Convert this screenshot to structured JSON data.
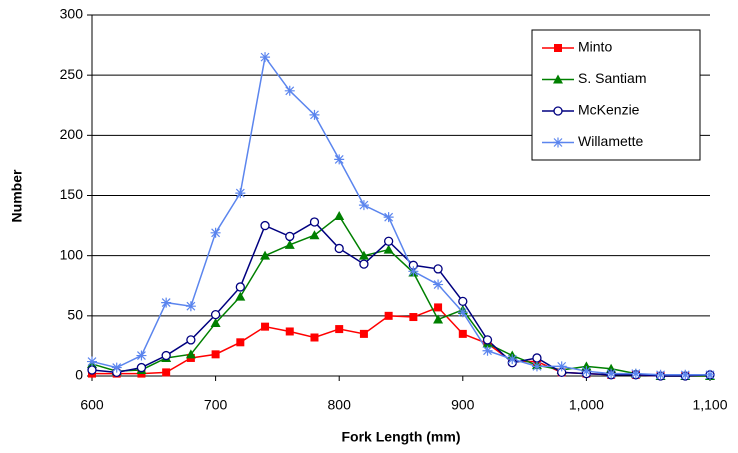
{
  "chart_data": {
    "type": "line",
    "x_label": "Fork Length (mm)",
    "y_label": "Number",
    "x": [
      600,
      620,
      640,
      660,
      680,
      700,
      720,
      740,
      760,
      780,
      800,
      820,
      840,
      860,
      880,
      900,
      920,
      940,
      960,
      980,
      1000,
      1020,
      1040,
      1060,
      1080,
      1100
    ],
    "series": [
      {
        "name": "Minto",
        "color": "#ff0000",
        "marker": "square",
        "values": [
          2,
          2,
          2,
          3,
          15,
          18,
          28,
          41,
          37,
          32,
          39,
          35,
          50,
          49,
          57,
          35,
          27,
          12,
          12,
          3,
          2,
          1,
          1,
          0,
          0,
          0
        ]
      },
      {
        "name": "S. Santiam",
        "color": "#008000",
        "marker": "triangle",
        "values": [
          10,
          4,
          5,
          15,
          18,
          44,
          66,
          100,
          109,
          117,
          133,
          100,
          105,
          86,
          47,
          55,
          27,
          17,
          9,
          5,
          8,
          6,
          2,
          0,
          0,
          0
        ]
      },
      {
        "name": "McKenzie",
        "color": "#000080",
        "marker": "circle",
        "values": [
          5,
          3,
          7,
          17,
          30,
          51,
          74,
          125,
          116,
          128,
          106,
          93,
          112,
          92,
          89,
          62,
          30,
          11,
          15,
          3,
          2,
          1,
          1,
          0,
          0,
          1
        ]
      },
      {
        "name": "Willamette",
        "color": "#5b85ee",
        "marker": "asterisk",
        "values": [
          12,
          7,
          17,
          61,
          58,
          119,
          152,
          265,
          237,
          217,
          180,
          142,
          132,
          87,
          76,
          53,
          21,
          14,
          8,
          8,
          4,
          2,
          2,
          1,
          1,
          1
        ]
      }
    ],
    "xlim": [
      600,
      1100
    ],
    "xticks": [
      600,
      700,
      800,
      900,
      {
        "value": 1000,
        "label": "1,000"
      },
      {
        "value": 1100,
        "label": "1,100"
      }
    ],
    "ylim": [
      0,
      300
    ],
    "yticks": [
      0,
      50,
      100,
      150,
      200,
      250,
      300
    ],
    "grid": true,
    "legend": "upper right"
  }
}
